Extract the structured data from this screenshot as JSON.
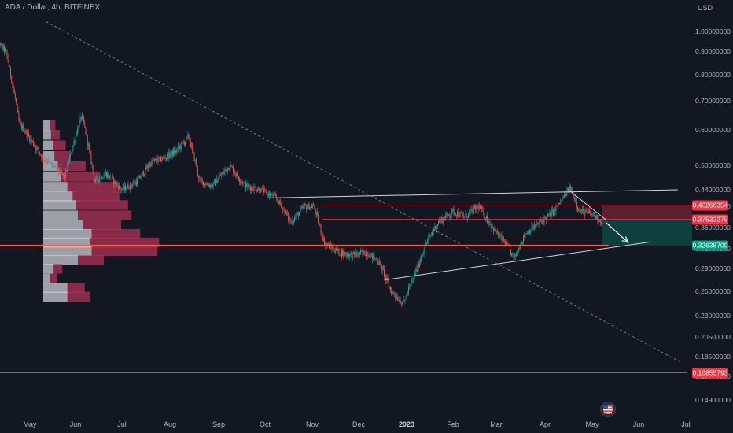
{
  "header": {
    "title": "ADA / Dollar, 4h, BITFINEX"
  },
  "axis": {
    "currency": "USD"
  },
  "chart_data": {
    "type": "candlestick",
    "title": "ADA / Dollar, 4h, BITFINEX",
    "ylabel": "USD",
    "ylim": [
      0.14,
      1.05
    ],
    "y_scale": "log",
    "xlim": [
      "2022-05-01",
      "2023-07-01"
    ],
    "y_ticks": [
      "1.00000000",
      "0.90000000",
      "0.80000000",
      "0.70000000",
      "0.60000000",
      "0.50000000",
      "0.44000000",
      "0.40000000",
      "0.36000000",
      "0.32000000",
      "0.29000000",
      "0.26000000",
      "0.23000000",
      "0.20500000",
      "0.18500000",
      "0.16500000",
      "0.14900000"
    ],
    "x_ticks": [
      "May",
      "Jun",
      "Jul",
      "Aug",
      "Sep",
      "Oct",
      "Nov",
      "Dec",
      "2023",
      "Feb",
      "Mar",
      "Apr",
      "May",
      "Jun",
      "Jul"
    ],
    "approx_close_path": [
      {
        "d": "2022-05-01",
        "p": 0.97
      },
      {
        "d": "2022-05-06",
        "p": 0.9
      },
      {
        "d": "2022-05-11",
        "p": 0.62
      },
      {
        "d": "2022-05-20",
        "p": 0.52
      },
      {
        "d": "2022-05-28",
        "p": 0.47
      },
      {
        "d": "2022-06-05",
        "p": 0.65
      },
      {
        "d": "2022-06-13",
        "p": 0.46
      },
      {
        "d": "2022-06-20",
        "p": 0.48
      },
      {
        "d": "2022-06-30",
        "p": 0.44
      },
      {
        "d": "2022-07-10",
        "p": 0.46
      },
      {
        "d": "2022-07-20",
        "p": 0.51
      },
      {
        "d": "2022-07-28",
        "p": 0.52
      },
      {
        "d": "2022-08-05",
        "p": 0.54
      },
      {
        "d": "2022-08-13",
        "p": 0.58
      },
      {
        "d": "2022-08-20",
        "p": 0.46
      },
      {
        "d": "2022-08-28",
        "p": 0.45
      },
      {
        "d": "2022-09-08",
        "p": 0.5
      },
      {
        "d": "2022-09-18",
        "p": 0.45
      },
      {
        "d": "2022-09-28",
        "p": 0.44
      },
      {
        "d": "2022-10-08",
        "p": 0.42
      },
      {
        "d": "2022-10-18",
        "p": 0.37
      },
      {
        "d": "2022-10-27",
        "p": 0.4
      },
      {
        "d": "2022-11-02",
        "p": 0.4
      },
      {
        "d": "2022-11-09",
        "p": 0.33
      },
      {
        "d": "2022-11-18",
        "p": 0.315
      },
      {
        "d": "2022-11-28",
        "p": 0.31
      },
      {
        "d": "2022-12-06",
        "p": 0.315
      },
      {
        "d": "2022-12-14",
        "p": 0.3
      },
      {
        "d": "2022-12-22",
        "p": 0.26
      },
      {
        "d": "2022-12-30",
        "p": 0.245
      },
      {
        "d": "2023-01-08",
        "p": 0.29
      },
      {
        "d": "2023-01-14",
        "p": 0.33
      },
      {
        "d": "2023-01-22",
        "p": 0.37
      },
      {
        "d": "2023-02-01",
        "p": 0.39
      },
      {
        "d": "2023-02-08",
        "p": 0.38
      },
      {
        "d": "2023-02-16",
        "p": 0.4
      },
      {
        "d": "2023-02-24",
        "p": 0.36
      },
      {
        "d": "2023-03-04",
        "p": 0.33
      },
      {
        "d": "2023-03-10",
        "p": 0.305
      },
      {
        "d": "2023-03-18",
        "p": 0.35
      },
      {
        "d": "2023-03-28",
        "p": 0.37
      },
      {
        "d": "2023-04-06",
        "p": 0.39
      },
      {
        "d": "2023-04-16",
        "p": 0.445
      },
      {
        "d": "2023-04-22",
        "p": 0.39
      },
      {
        "d": "2023-04-30",
        "p": 0.385
      },
      {
        "d": "2023-05-07",
        "p": 0.37
      }
    ],
    "price_labels": [
      {
        "value": "0.40266354",
        "color": "#f23645"
      },
      {
        "value": "0.37532275",
        "color": "#f23645"
      },
      {
        "value": "0.32638709",
        "color": "#089981"
      },
      {
        "value": "0.16855793",
        "color": "#f23645"
      }
    ],
    "drawings": {
      "horizontal_lines": [
        {
          "price": 0.326,
          "color": "#ff5a36",
          "from": "2022-04-18",
          "to": "2023-05-11"
        },
        {
          "price": 0.1686,
          "color": "#f23645",
          "from": "2022-04-18",
          "to": "2023-07-01"
        }
      ],
      "trend_lines": [
        {
          "from": {
            "d": "2022-10-01",
            "p": 0.42
          },
          "to": {
            "d": "2023-06-25",
            "p": 0.44
          }
        },
        {
          "from": {
            "d": "2022-12-18",
            "p": 0.275
          },
          "to": {
            "d": "2023-06-08",
            "p": 0.333
          }
        },
        {
          "from": {
            "d": "2023-04-15",
            "p": 0.44
          },
          "to": {
            "d": "2023-05-09",
            "p": 0.375
          }
        }
      ],
      "dashed_trend_line": {
        "from": {
          "d": "2022-05-21",
          "p": 1.05
        },
        "to": {
          "d": "2023-06-26",
          "p": 0.18
        }
      },
      "arrow": {
        "from": {
          "d": "2023-05-09",
          "p": 0.37
        },
        "to": {
          "d": "2023-05-24",
          "p": 0.332
        }
      }
    },
    "zones": [
      {
        "top": 0.40266354,
        "bottom": 0.37532275,
        "color": "#f23645"
      },
      {
        "top": 0.37532275,
        "bottom": 0.32638709,
        "color": "#089981"
      }
    ],
    "volume_profile": [
      {
        "p": 0.615,
        "up": 0.08,
        "down": 0.06
      },
      {
        "p": 0.585,
        "up": 0.09,
        "down": 0.1
      },
      {
        "p": 0.555,
        "up": 0.12,
        "down": 0.14
      },
      {
        "p": 0.525,
        "up": 0.13,
        "down": 0.18
      },
      {
        "p": 0.497,
        "up": 0.17,
        "down": 0.32
      },
      {
        "p": 0.471,
        "up": 0.2,
        "down": 0.46
      },
      {
        "p": 0.446,
        "up": 0.28,
        "down": 0.58
      },
      {
        "p": 0.423,
        "up": 0.34,
        "down": 0.54
      },
      {
        "p": 0.402,
        "up": 0.38,
        "down": 0.6
      },
      {
        "p": 0.382,
        "up": 0.4,
        "down": 0.62
      },
      {
        "p": 0.364,
        "up": 0.46,
        "down": 0.44
      },
      {
        "p": 0.347,
        "up": 0.56,
        "down": 0.56
      },
      {
        "p": 0.331,
        "up": 0.54,
        "down": 0.8
      },
      {
        "p": 0.316,
        "up": 0.56,
        "down": 0.76
      },
      {
        "p": 0.302,
        "up": 0.4,
        "down": 0.3
      },
      {
        "p": 0.289,
        "up": 0.12,
        "down": 0.1
      },
      {
        "p": 0.276,
        "up": 0.08,
        "down": 0.08
      },
      {
        "p": 0.264,
        "up": 0.28,
        "down": 0.2
      },
      {
        "p": 0.253,
        "up": 0.28,
        "down": 0.26
      }
    ]
  }
}
